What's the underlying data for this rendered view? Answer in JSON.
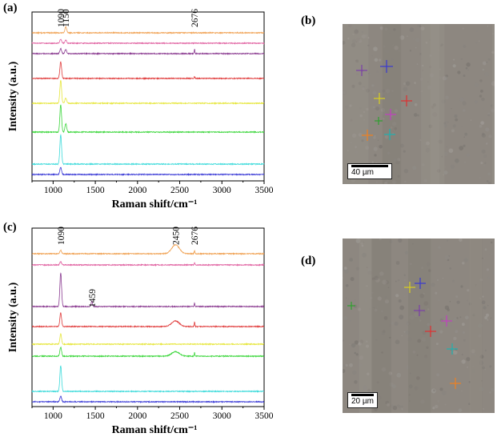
{
  "figure": {
    "panels": [
      "(a)",
      "(b)",
      "(c)",
      "(d)"
    ],
    "scalebar_b": "40 µm",
    "scalebar_d": "20 µm",
    "marker_colors": [
      "#7b3fa8",
      "#3a3ad0",
      "#d8d020",
      "#e03030",
      "#c040c0",
      "#30a030",
      "#f08020",
      "#20b0b0"
    ]
  },
  "chart_data": [
    {
      "type": "line",
      "panel": "(a)",
      "xlabel": "Raman shift/cm⁻¹",
      "ylabel": "Intensity (a.u.)",
      "xlim": [
        750,
        3500
      ],
      "xticks": [
        1000,
        1500,
        2000,
        2500,
        3000,
        3500
      ],
      "annotations": [
        {
          "label": "1090",
          "x": 1090
        },
        {
          "label": "1150",
          "x": 1150
        },
        {
          "label": "2676",
          "x": 2676
        }
      ],
      "series": [
        {
          "color": "#f0a050",
          "peaks": [
            [
              1150,
              0.6
            ]
          ]
        },
        {
          "color": "#e060a0",
          "peaks": [
            [
              1090,
              0.4
            ],
            [
              1150,
              0.3
            ]
          ]
        },
        {
          "color": "#8a3a90",
          "peaks": [
            [
              1090,
              0.5
            ],
            [
              1150,
              0.4
            ],
            [
              2676,
              0.4
            ]
          ]
        },
        {
          "color": "#e03b3b",
          "peaks": [
            [
              1090,
              1.6
            ],
            [
              2676,
              0.2
            ]
          ]
        },
        {
          "color": "#e6e63a",
          "peaks": [
            [
              1090,
              2.2
            ],
            [
              1150,
              0.5
            ]
          ]
        },
        {
          "color": "#3ad63a",
          "peaks": [
            [
              1090,
              2.6
            ],
            [
              1150,
              0.8
            ]
          ]
        },
        {
          "color": "#3adada",
          "peaks": [
            [
              1090,
              2.8
            ]
          ]
        },
        {
          "color": "#3a3ad6",
          "peaks": [
            [
              1090,
              0.7
            ]
          ]
        }
      ]
    },
    {
      "type": "line",
      "panel": "(c)",
      "xlabel": "Raman shift/cm⁻¹",
      "ylabel": "Intensity (a.u.)",
      "xlim": [
        750,
        3500
      ],
      "xticks": [
        1000,
        1500,
        2000,
        2500,
        3000,
        3500
      ],
      "annotations": [
        {
          "label": "1090",
          "x": 1090
        },
        {
          "label": "1459",
          "x": 1459
        },
        {
          "label": "2450",
          "x": 2450
        },
        {
          "label": "2676",
          "x": 2676
        }
      ],
      "series": [
        {
          "color": "#f0a050",
          "peaks": [
            [
              1090,
              0.3
            ],
            [
              2450,
              0.8
            ],
            [
              2676,
              0.3
            ]
          ]
        },
        {
          "color": "#e060a0",
          "peaks": [
            [
              1090,
              0.3
            ],
            [
              2676,
              0.2
            ]
          ]
        },
        {
          "color": "#8a3a90",
          "peaks": [
            [
              1090,
              3.0
            ],
            [
              1459,
              0.5
            ],
            [
              2676,
              0.3
            ]
          ]
        },
        {
          "color": "#e03b3b",
          "peaks": [
            [
              1090,
              1.2
            ],
            [
              2450,
              0.5
            ],
            [
              2676,
              0.4
            ]
          ]
        },
        {
          "color": "#e6e63a",
          "peaks": [
            [
              1090,
              0.9
            ]
          ]
        },
        {
          "color": "#3ad63a",
          "peaks": [
            [
              1090,
              0.8
            ],
            [
              2450,
              0.4
            ],
            [
              2676,
              0.3
            ]
          ]
        },
        {
          "color": "#3adada",
          "peaks": [
            [
              1090,
              2.3
            ]
          ]
        },
        {
          "color": "#3a3ad6",
          "peaks": [
            [
              1090,
              0.5
            ]
          ]
        }
      ]
    }
  ]
}
